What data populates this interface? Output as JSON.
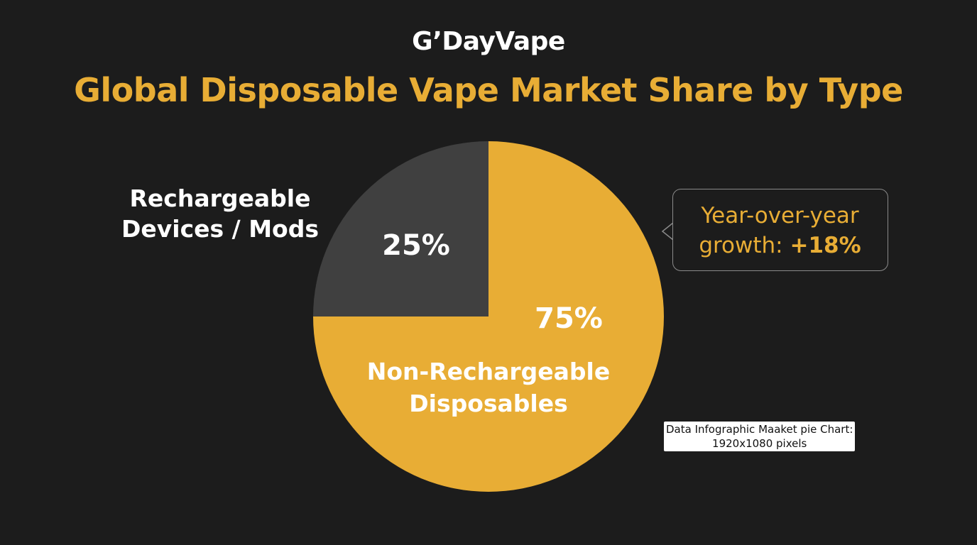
{
  "brand": "G’DayVape",
  "chart_data": {
    "type": "pie",
    "title": "Global Disposable Vape Market Share by Type",
    "slices": [
      {
        "label_lines": [
          "Non-Rechargeable",
          "Disposables"
        ],
        "value": 75,
        "display": "75%",
        "color": "#e8ad35"
      },
      {
        "label_lines": [
          "Rechargeable",
          "Devices / Mods"
        ],
        "value": 25,
        "display": "25%",
        "color": "#404040"
      }
    ]
  },
  "callout": {
    "line1": "Year-over-year",
    "line2_prefix": "growth: ",
    "line2_value": "+18%"
  },
  "caption": {
    "line1": "Data Infographic Maaket pie Chart:",
    "line2": "1920x1080 pixels"
  }
}
